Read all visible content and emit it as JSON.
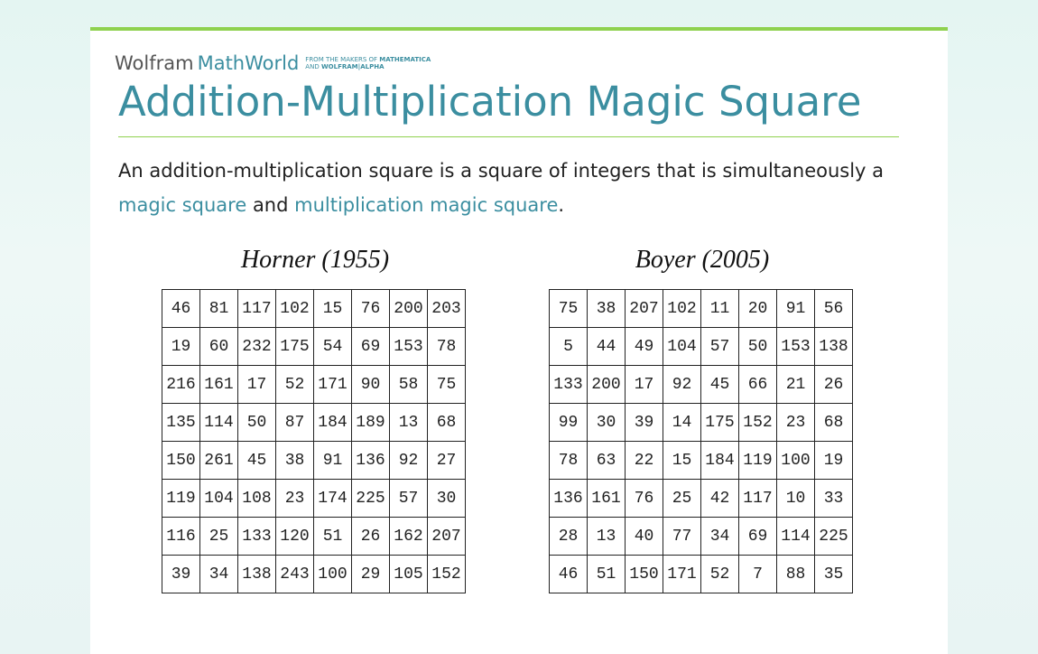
{
  "logo": {
    "brand": "Wolfram",
    "product": "MathWorld",
    "tagline_1": "FROM THE MAKERS OF",
    "tagline_1_strong": "MATHEMATICA",
    "tagline_2": "AND",
    "tagline_2_strong": "WOLFRAM|ALPHA"
  },
  "title": "Addition-Multiplication Magic Square",
  "intro": [
    "An addition-multiplication square is a square of integers that is simultaneously a ",
    "magic square",
    " and ",
    "multiplication magic square",
    "."
  ],
  "squares": [
    {
      "caption": "Horner (1955)",
      "rows": [
        [
          46,
          81,
          117,
          102,
          15,
          76,
          200,
          203
        ],
        [
          19,
          60,
          232,
          175,
          54,
          69,
          153,
          78
        ],
        [
          216,
          161,
          17,
          52,
          171,
          90,
          58,
          75
        ],
        [
          135,
          114,
          50,
          87,
          184,
          189,
          13,
          68
        ],
        [
          150,
          261,
          45,
          38,
          91,
          136,
          92,
          27
        ],
        [
          119,
          104,
          108,
          23,
          174,
          225,
          57,
          30
        ],
        [
          116,
          25,
          133,
          120,
          51,
          26,
          162,
          207
        ],
        [
          39,
          34,
          138,
          243,
          100,
          29,
          105,
          152
        ]
      ]
    },
    {
      "caption": "Boyer (2005)",
      "rows": [
        [
          75,
          38,
          207,
          102,
          11,
          20,
          91,
          56
        ],
        [
          5,
          44,
          49,
          104,
          57,
          50,
          153,
          138
        ],
        [
          133,
          200,
          17,
          92,
          45,
          66,
          21,
          26
        ],
        [
          99,
          30,
          39,
          14,
          175,
          152,
          23,
          68
        ],
        [
          78,
          63,
          22,
          15,
          184,
          119,
          100,
          19
        ],
        [
          136,
          161,
          76,
          25,
          42,
          117,
          10,
          33
        ],
        [
          28,
          13,
          40,
          77,
          34,
          69,
          114,
          225
        ],
        [
          46,
          51,
          150,
          171,
          52,
          7,
          88,
          35
        ]
      ]
    }
  ]
}
